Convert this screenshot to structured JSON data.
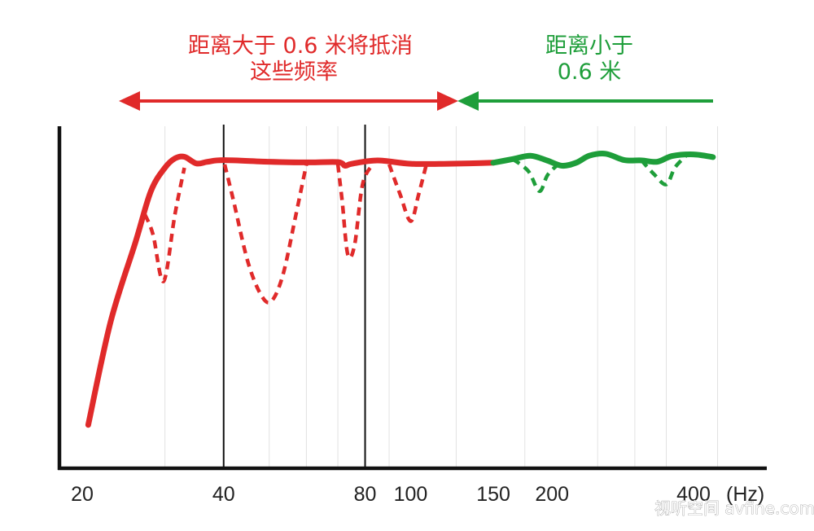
{
  "annotations": {
    "red_line1": "距离大于 0.6 米将抵消",
    "red_line2": "这些频率",
    "green_line1": "距离小于",
    "green_line2": "0.6 米"
  },
  "colors": {
    "red": "#e02a2a",
    "green": "#1e9e3a",
    "axis": "#111111",
    "grid": "#e2e2e2"
  },
  "watermark": "视听空间 avfine.com",
  "chart_data": {
    "type": "line",
    "x_scale": "log",
    "x_unit": "(Hz)",
    "xlim": [
      19,
      500
    ],
    "ylim": [
      0,
      100
    ],
    "x_ticks": [
      {
        "value": 20,
        "label": "20"
      },
      {
        "value": 40,
        "label": "40"
      },
      {
        "value": 80,
        "label": "80"
      },
      {
        "value": 100,
        "label": "100"
      },
      {
        "value": 150,
        "label": "150",
        "highlight": true
      },
      {
        "value": 200,
        "label": "200"
      },
      {
        "value": 400,
        "label": "400"
      }
    ],
    "reference_lines": [
      40,
      80
    ],
    "grid": true,
    "series": [
      {
        "color": "red",
        "style": "solid",
        "points": [
          [
            20.6,
            13
          ],
          [
            23,
            44
          ],
          [
            26,
            68
          ],
          [
            28,
            83
          ],
          [
            30,
            90
          ],
          [
            31.5,
            92.8
          ],
          [
            33,
            93.3
          ],
          [
            35,
            91.3
          ],
          [
            37,
            91.8
          ],
          [
            40,
            92.3
          ],
          [
            50,
            91.8
          ],
          [
            60,
            91.6
          ],
          [
            70,
            91.7
          ],
          [
            72.5,
            90.6
          ],
          [
            75,
            91.2
          ],
          [
            85,
            92.2
          ],
          [
            100,
            91.2
          ],
          [
            120,
            91.2
          ],
          [
            150,
            91.5
          ]
        ]
      },
      {
        "color": "red",
        "style": "dashed",
        "points": [
          [
            27.2,
            76
          ],
          [
            28.3,
            70
          ],
          [
            29.8,
            56
          ],
          [
            31.5,
            76
          ],
          [
            33,
            90
          ]
        ]
      },
      {
        "color": "red",
        "style": "dashed",
        "points": [
          [
            40.2,
            91
          ],
          [
            42,
            80
          ],
          [
            45,
            62
          ],
          [
            48,
            52
          ],
          [
            50.5,
            50
          ],
          [
            53.5,
            58
          ],
          [
            57,
            76
          ],
          [
            60,
            91
          ]
        ]
      },
      {
        "color": "red",
        "style": "dashed",
        "points": [
          [
            70,
            91
          ],
          [
            71.5,
            80
          ],
          [
            73.5,
            64
          ],
          [
            76,
            67
          ],
          [
            79,
            85
          ],
          [
            83,
            91
          ]
        ]
      },
      {
        "color": "red",
        "style": "dashed",
        "points": [
          [
            90,
            91
          ],
          [
            95,
            82
          ],
          [
            100,
            74
          ],
          [
            104,
            82
          ],
          [
            108,
            91
          ]
        ]
      },
      {
        "color": "green",
        "style": "solid",
        "points": [
          [
            150,
            91.5
          ],
          [
            165,
            92.6
          ],
          [
            180,
            93.6
          ],
          [
            195,
            92.2
          ],
          [
            210,
            90.6
          ],
          [
            225,
            91.5
          ],
          [
            240,
            93.6
          ],
          [
            260,
            94.2
          ],
          [
            285,
            92.3
          ],
          [
            310,
            92.2
          ],
          [
            335,
            91.8
          ],
          [
            360,
            93.5
          ],
          [
            400,
            94.0
          ],
          [
            440,
            93.2
          ]
        ]
      },
      {
        "color": "green",
        "style": "dashed",
        "points": [
          [
            165,
            92.6
          ],
          [
            178,
            89
          ],
          [
            188,
            83
          ],
          [
            196,
            88
          ],
          [
            210,
            92
          ]
        ]
      },
      {
        "color": "green",
        "style": "dashed",
        "points": [
          [
            310,
            92.2
          ],
          [
            330,
            88
          ],
          [
            350,
            85
          ],
          [
            365,
            90
          ],
          [
            385,
            93.5
          ]
        ]
      }
    ]
  }
}
